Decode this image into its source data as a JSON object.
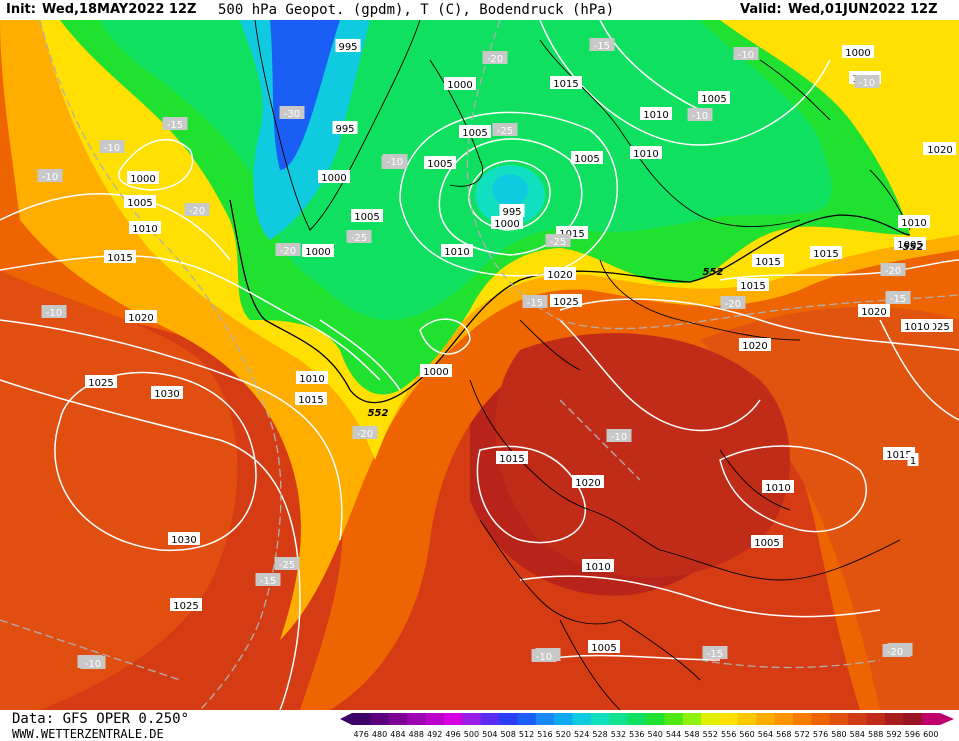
{
  "header": {
    "init_label": "Init:",
    "init_value": "Wed,18MAY2022 12Z",
    "title": "500 hPa Geopot. (gpdm), T (C), Bodendruck (hPa)",
    "valid_label": "Valid:",
    "valid_value": "Wed,01JUN2022 12Z"
  },
  "footer": {
    "data_source": "Data: GFS OPER 0.250°",
    "website": "WWW.WETTERZENTRALE.DE"
  },
  "colorbar": {
    "ticks": [
      "476",
      "480",
      "484",
      "488",
      "492",
      "496",
      "500",
      "504",
      "508",
      "512",
      "516",
      "520",
      "524",
      "528",
      "532",
      "536",
      "540",
      "544",
      "548",
      "552",
      "556",
      "560",
      "564",
      "568",
      "572",
      "576",
      "580",
      "584",
      "588",
      "592",
      "596",
      "600"
    ],
    "colors": [
      "#3c0066",
      "#5c007e",
      "#7c0096",
      "#9c00b0",
      "#bc00ca",
      "#d600e0",
      "#9a1ee6",
      "#5a2ef0",
      "#2a3ef6",
      "#1a5ef6",
      "#1a88f6",
      "#10aaf0",
      "#10cae0",
      "#10e0c0",
      "#10e290",
      "#10e060",
      "#20e030",
      "#50e810",
      "#90f010",
      "#e0f000",
      "#ffe000",
      "#ffc800",
      "#ffae00",
      "#ff9400",
      "#f87c00",
      "#ee6400",
      "#e04e10",
      "#d23c14",
      "#c02c18",
      "#a81c1c",
      "#981420",
      "#c0006a"
    ]
  },
  "map": {
    "pressure_labels": [
      "995",
      "1000",
      "1005",
      "1010",
      "1015",
      "1020",
      "1025",
      "1030",
      "552"
    ],
    "temperature_labels": [
      "-10",
      "-15",
      "-20",
      "-25",
      "-30"
    ],
    "labels": [
      {
        "t": "995",
        "kind": "p"
      },
      {
        "t": "1000",
        "kind": "p"
      },
      {
        "t": "1015",
        "kind": "p"
      },
      {
        "t": "1010",
        "kind": "p"
      },
      {
        "t": "1005",
        "kind": "p"
      },
      {
        "t": "1000",
        "kind": "p"
      },
      {
        "t": "995",
        "kind": "p"
      },
      {
        "t": "1000",
        "kind": "p"
      },
      {
        "t": "1005",
        "kind": "p"
      },
      {
        "t": "1000",
        "kind": "p"
      },
      {
        "t": "1005",
        "kind": "p"
      },
      {
        "t": "1010",
        "kind": "p"
      },
      {
        "t": "1015",
        "kind": "p"
      },
      {
        "t": "1020",
        "kind": "p"
      },
      {
        "t": "1025",
        "kind": "p"
      },
      {
        "t": "1030",
        "kind": "p"
      },
      {
        "t": "1030",
        "kind": "p"
      },
      {
        "t": "1025",
        "kind": "p"
      },
      {
        "t": "1010",
        "kind": "p"
      },
      {
        "t": "1015",
        "kind": "p"
      },
      {
        "t": "1005",
        "kind": "p"
      },
      {
        "t": "995",
        "kind": "p"
      },
      {
        "t": "1000",
        "kind": "p"
      },
      {
        "t": "1010",
        "kind": "p"
      },
      {
        "t": "1005",
        "kind": "p"
      },
      {
        "t": "1000",
        "kind": "p"
      },
      {
        "t": "1015",
        "kind": "p"
      },
      {
        "t": "1020",
        "kind": "p"
      },
      {
        "t": "1025",
        "kind": "p"
      },
      {
        "t": "1005",
        "kind": "p"
      },
      {
        "t": "1010",
        "kind": "p"
      },
      {
        "t": "1015",
        "kind": "p"
      },
      {
        "t": "1020",
        "kind": "p"
      },
      {
        "t": "1025",
        "kind": "p"
      },
      {
        "t": "1015",
        "kind": "p"
      },
      {
        "t": "1020",
        "kind": "p"
      },
      {
        "t": "1015",
        "kind": "p"
      },
      {
        "t": "1010",
        "kind": "p"
      },
      {
        "t": "1020",
        "kind": "p"
      },
      {
        "t": "1015",
        "kind": "p"
      },
      {
        "t": "1010",
        "kind": "p"
      },
      {
        "t": "1005",
        "kind": "p"
      },
      {
        "t": "1000",
        "kind": "p"
      },
      {
        "t": "1005",
        "kind": "p"
      },
      {
        "t": "1010",
        "kind": "p"
      },
      {
        "t": "1015",
        "kind": "p"
      },
      {
        "t": "1020",
        "kind": "p"
      },
      {
        "t": "1015",
        "kind": "p"
      },
      {
        "t": "1005",
        "kind": "p"
      },
      {
        "t": "1010",
        "kind": "p"
      },
      {
        "t": "1",
        "kind": "p"
      },
      {
        "t": "1010",
        "kind": "p"
      },
      {
        "t": "552",
        "kind": "h"
      },
      {
        "t": "552",
        "kind": "h"
      },
      {
        "t": "552",
        "kind": "h"
      },
      {
        "t": "-10",
        "kind": "t"
      },
      {
        "t": "-10",
        "kind": "t"
      },
      {
        "t": "-15",
        "kind": "t"
      },
      {
        "t": "-10",
        "kind": "t"
      },
      {
        "t": "-20",
        "kind": "t"
      },
      {
        "t": "-25",
        "kind": "t"
      },
      {
        "t": "-30",
        "kind": "t"
      },
      {
        "t": "-25",
        "kind": "t"
      },
      {
        "t": "-20",
        "kind": "t"
      },
      {
        "t": "-25",
        "kind": "t"
      },
      {
        "t": "-25",
        "kind": "t"
      },
      {
        "t": "-20",
        "kind": "t"
      },
      {
        "t": "-25",
        "kind": "t"
      },
      {
        "t": "-15",
        "kind": "t"
      },
      {
        "t": "-15",
        "kind": "t"
      },
      {
        "t": "-20",
        "kind": "t"
      },
      {
        "t": "-15",
        "kind": "t"
      },
      {
        "t": "-20",
        "kind": "t"
      },
      {
        "t": "-15",
        "kind": "t"
      },
      {
        "t": "-10",
        "kind": "t"
      },
      {
        "t": "-10",
        "kind": "t"
      },
      {
        "t": "-10",
        "kind": "t"
      },
      {
        "t": "-10",
        "kind": "t"
      },
      {
        "t": "-15",
        "kind": "t"
      },
      {
        "t": "-20",
        "kind": "t"
      },
      {
        "t": "-25",
        "kind": "t"
      },
      {
        "t": "-20",
        "kind": "t"
      },
      {
        "t": "-10",
        "kind": "t"
      },
      {
        "t": "-10",
        "kind": "t"
      },
      {
        "t": "-10",
        "kind": "t"
      },
      {
        "t": "-15",
        "kind": "t"
      },
      {
        "t": "-20",
        "kind": "t"
      },
      {
        "t": "-10",
        "kind": "t"
      }
    ]
  }
}
